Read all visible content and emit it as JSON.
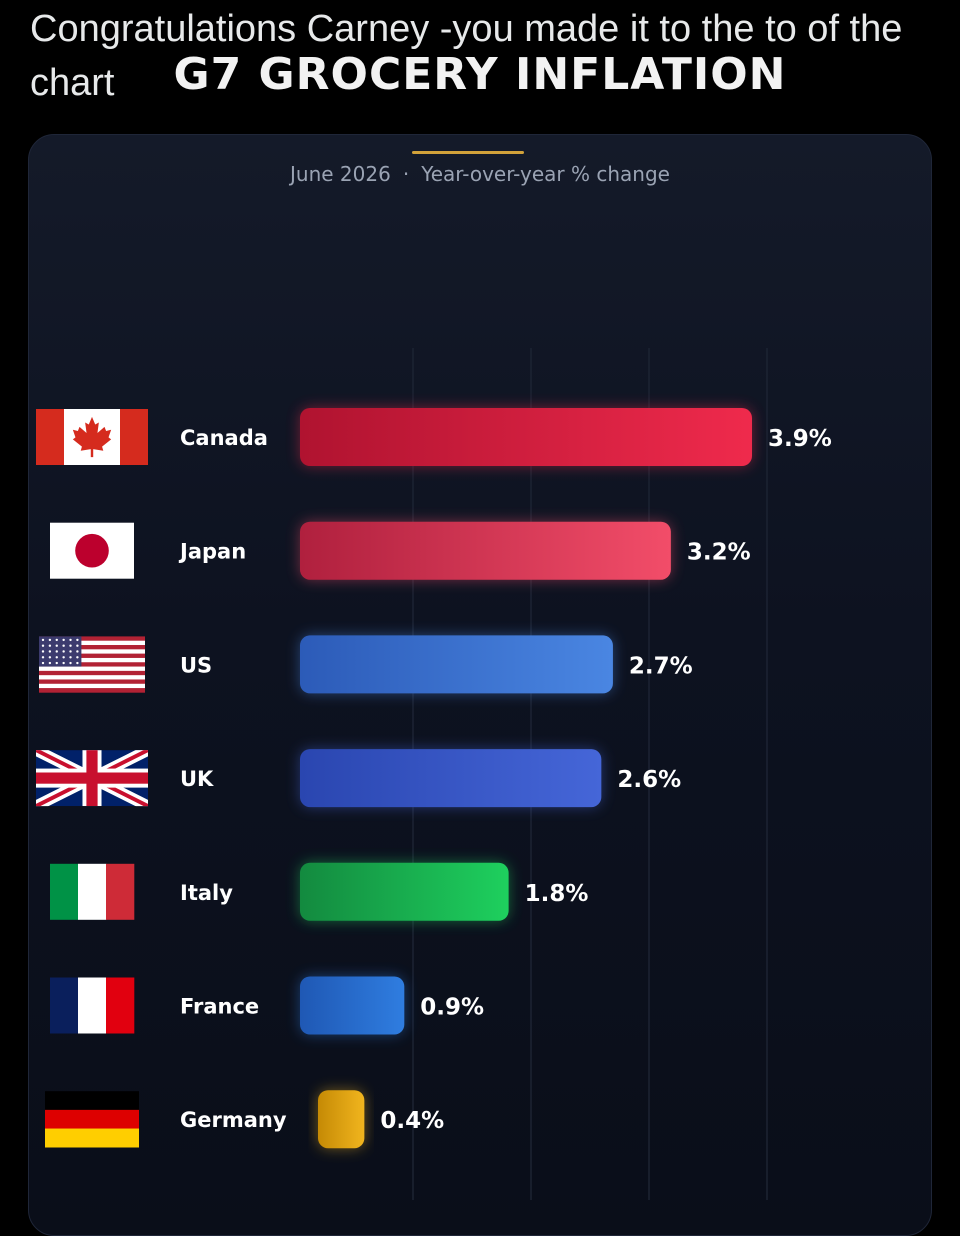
{
  "post": {
    "text": "Congratulations Carney -you made it to the to of the chart"
  },
  "chart_data": {
    "type": "bar",
    "orientation": "horizontal",
    "title": "G7 GROCERY INFLATION",
    "subtitle_date": "June 2026",
    "subtitle_separator": "·",
    "subtitle_metric": "Year-over-year % change",
    "categories": [
      "Canada",
      "Japan",
      "US",
      "UK",
      "Italy",
      "France",
      "Germany"
    ],
    "values": [
      3.9,
      3.2,
      2.7,
      2.6,
      1.8,
      0.9,
      0.4
    ],
    "value_labels": [
      "3.9%",
      "3.2%",
      "2.7%",
      "2.6%",
      "1.8%",
      "0.9%",
      "0.4%"
    ],
    "bar_colors": [
      [
        "#b01330",
        "#ef2a4c"
      ],
      [
        "#b0203e",
        "#f24d69"
      ],
      [
        "#2c5bb8",
        "#4a86e2"
      ],
      [
        "#2a46b0",
        "#4566d8"
      ],
      [
        "#138a3f",
        "#1ed05e"
      ],
      [
        "#1f58b4",
        "#2f7de0"
      ],
      [
        "#c58a05",
        "#f1b51e"
      ]
    ],
    "flags": [
      "canada-flag",
      "japan-flag",
      "us-flag",
      "uk-flag",
      "italy-flag",
      "france-flag",
      "germany-flag"
    ],
    "xlim": [
      0,
      3.9
    ],
    "grid": "vertical",
    "legend": "none"
  }
}
